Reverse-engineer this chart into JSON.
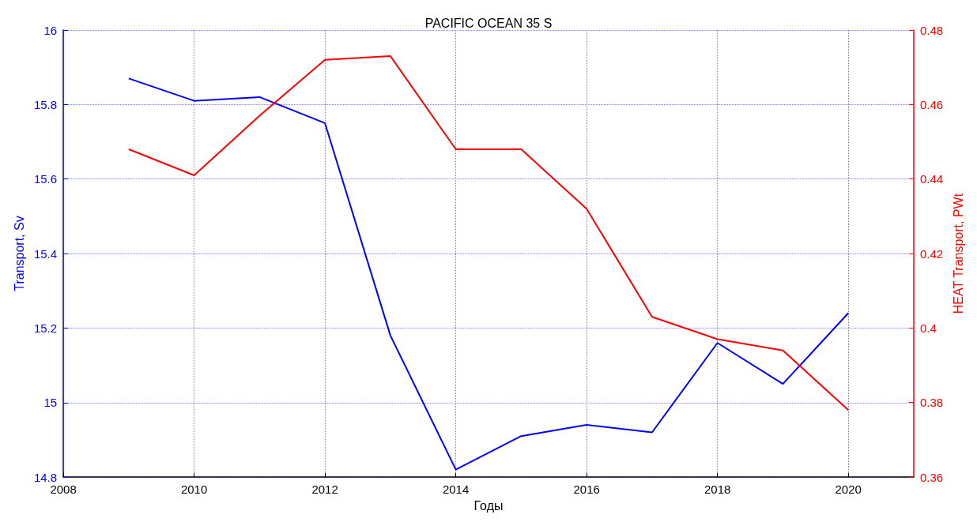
{
  "chart_data": {
    "type": "line",
    "title": "PACIFIC OCEAN 35 S",
    "xlabel": "Годы",
    "ylabel": "Transport, Sv",
    "y2label": "HEAT Transport, PWt",
    "x": [
      2009,
      2010,
      2011,
      2012,
      2013,
      2014,
      2015,
      2016,
      2017,
      2018,
      2019,
      2020
    ],
    "series": [
      {
        "color": "#0000ff",
        "values": [
          15.87,
          15.81,
          15.82,
          15.75,
          15.18,
          14.82,
          14.91,
          14.94,
          14.92,
          15.16,
          15.05,
          15.24
        ]
      },
      {
        "color": "#ff0000",
        "axis": "y2",
        "values": [
          0.448,
          0.441,
          0.457,
          0.472,
          0.473,
          0.448,
          0.448,
          0.432,
          0.403,
          0.397,
          0.394,
          0.378
        ]
      }
    ],
    "xlim": [
      2008,
      2021
    ],
    "xticks": [
      2008,
      2010,
      2012,
      2014,
      2016,
      2018,
      2020
    ],
    "ylim": [
      14.8,
      16
    ],
    "yticks": [
      14.8,
      15,
      15.2,
      15.4,
      15.6,
      15.8,
      16
    ],
    "y2lim": [
      0.36,
      0.48
    ],
    "y2ticks": [
      0.36,
      0.38,
      0.4,
      0.42,
      0.44,
      0.46,
      0.48
    ],
    "grid": true,
    "marker": "none",
    "line_style": "solid"
  }
}
